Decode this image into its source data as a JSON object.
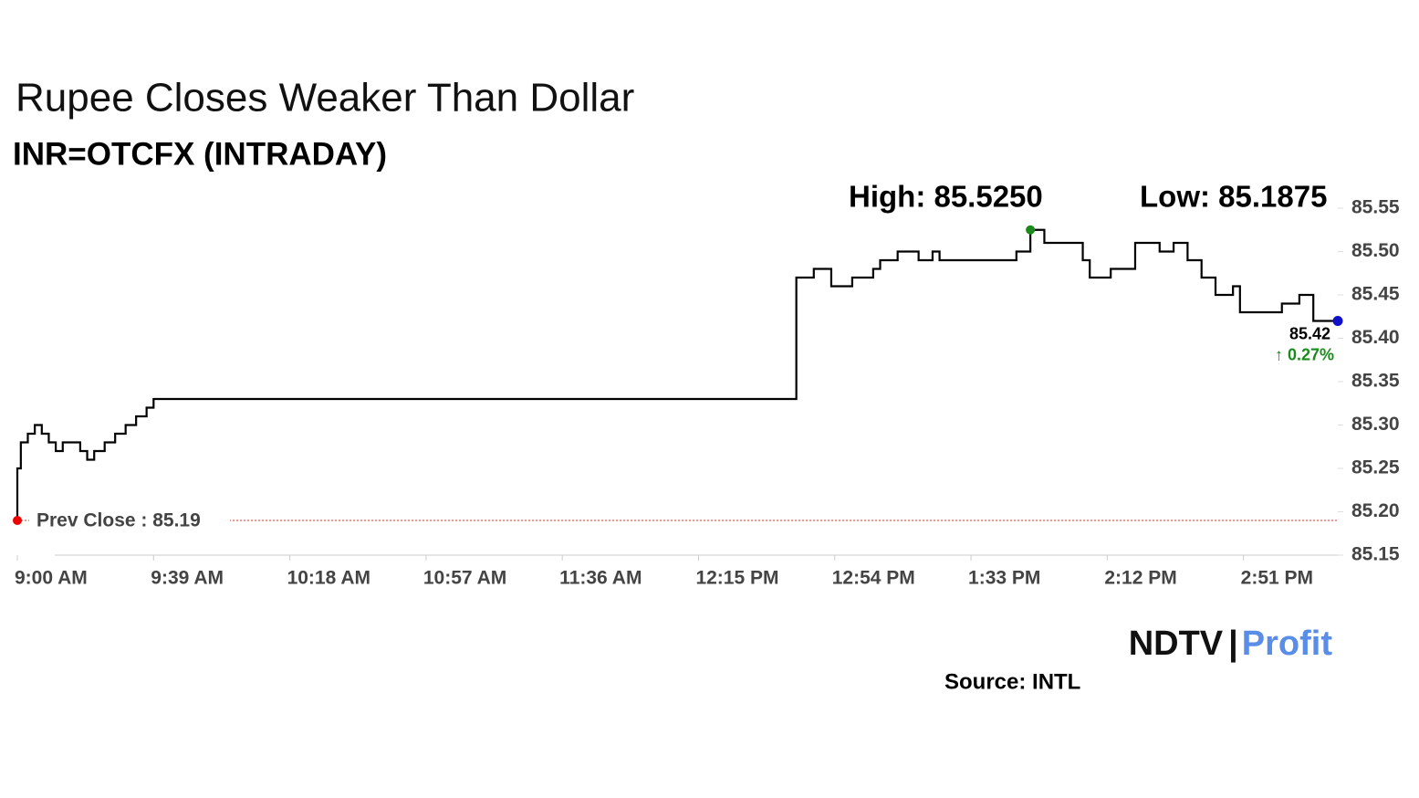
{
  "chart_data": {
    "type": "line",
    "title": "Rupee Closes Weaker Than Dollar",
    "subtitle": "INR=OTCFX (INTRADAY)",
    "high": {
      "value": 85.525,
      "label": "High: 85.5250"
    },
    "low": {
      "value": 85.1875,
      "label": "Low: 85.1875"
    },
    "last": {
      "value": 85.42,
      "label": "85.42"
    },
    "change": {
      "value": 0.27,
      "label": "↑ 0.27%"
    },
    "prev_close": {
      "value": 85.19,
      "label": "Prev Close : 85.19"
    },
    "x": [
      "9:00 AM",
      "9:00 AM",
      "9:01 AM",
      "9:03 AM",
      "9:05 AM",
      "9:07 AM",
      "9:09 AM",
      "9:11 AM",
      "9:13 AM",
      "9:15 AM",
      "9:18 AM",
      "9:20 AM",
      "9:22 AM",
      "9:25 AM",
      "9:28 AM",
      "9:31 AM",
      "9:34 AM",
      "9:37 AM",
      "9:39 AM",
      "12:42 PM",
      "12:43 PM",
      "12:44 PM",
      "12:48 PM",
      "12:53 PM",
      "12:59 PM",
      "1:05 PM",
      "1:07 PM",
      "1:12 PM",
      "1:18 PM",
      "1:22 PM",
      "1:24 PM",
      "1:32 PM",
      "1:40 PM",
      "1:46 PM",
      "1:50 PM",
      "1:54 PM",
      "2:01 PM",
      "2:05 PM",
      "2:07 PM",
      "2:13 PM",
      "2:18 PM",
      "2:20 PM",
      "2:27 PM",
      "2:31 PM",
      "2:35 PM",
      "2:39 PM",
      "2:43 PM",
      "2:48 PM",
      "2:50 PM",
      "2:57 PM",
      "3:02 PM",
      "3:07 PM",
      "3:11 PM",
      "3:18 PM"
    ],
    "series": [
      {
        "name": "INR=OTCFX",
        "color": "#000000",
        "values": [
          85.19,
          85.25,
          85.28,
          85.29,
          85.3,
          85.29,
          85.28,
          85.27,
          85.28,
          85.28,
          85.27,
          85.26,
          85.27,
          85.28,
          85.29,
          85.3,
          85.31,
          85.32,
          85.33,
          85.33,
          85.47,
          85.47,
          85.48,
          85.46,
          85.47,
          85.48,
          85.49,
          85.5,
          85.49,
          85.5,
          85.49,
          85.49,
          85.49,
          85.5,
          85.525,
          85.51,
          85.51,
          85.49,
          85.47,
          85.48,
          85.48,
          85.51,
          85.5,
          85.51,
          85.49,
          85.47,
          85.45,
          85.46,
          85.43,
          85.43,
          85.44,
          85.45,
          85.42,
          85.42
        ]
      }
    ],
    "xlim": [
      "9:00 AM",
      "3:18 PM"
    ],
    "xticks": [
      "9:00 AM",
      "9:39 AM",
      "10:18 AM",
      "10:57 AM",
      "11:36 AM",
      "12:15 PM",
      "12:54 PM",
      "1:33 PM",
      "2:12 PM",
      "2:51 PM"
    ],
    "ylim": [
      85.15,
      85.55
    ],
    "yticks": [
      85.15,
      {
        "value": 85.2,
        "label": "85.20"
      },
      85.25,
      {
        "value": 85.3,
        "label": "85.30"
      },
      85.35,
      {
        "value": 85.4,
        "label": "85.40"
      },
      85.45,
      {
        "value": 85.5,
        "label": "85.50"
      },
      85.55
    ],
    "logo": {
      "brand": "NDTV",
      "product": "Profit"
    },
    "source": "Source: INTL"
  }
}
